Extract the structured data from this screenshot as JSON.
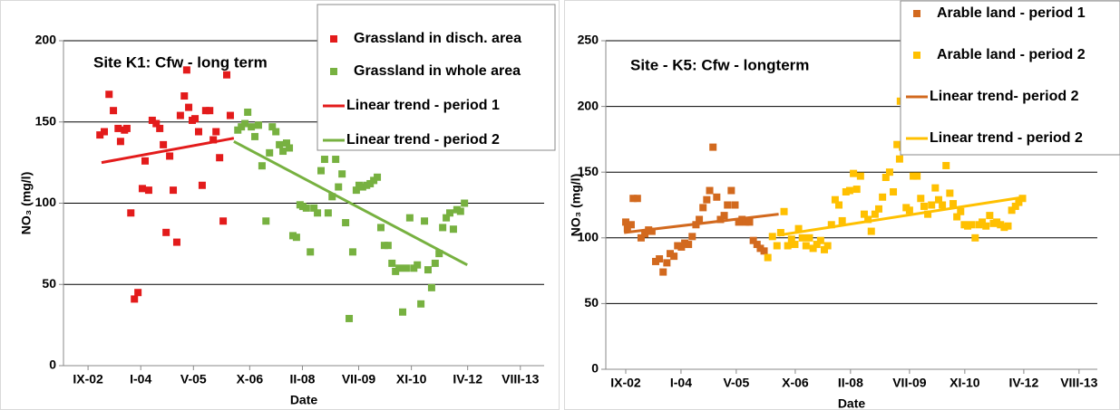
{
  "chart_data": [
    {
      "type": "scatter",
      "title": "Site K1:  Cfw - long term",
      "x_label": "Date",
      "y_label": "NO₃ (mg/l)",
      "xlim": [
        2002.05,
        2014.18
      ],
      "xticks": [
        {
          "value": 2002.67,
          "label": "IX-02"
        },
        {
          "value": 2004.0,
          "label": "I-04"
        },
        {
          "value": 2005.33,
          "label": "V-05"
        },
        {
          "value": 2006.75,
          "label": "X-06"
        },
        {
          "value": 2008.08,
          "label": "II-08"
        },
        {
          "value": 2009.5,
          "label": "VII-09"
        },
        {
          "value": 2010.83,
          "label": "XI-10"
        },
        {
          "value": 2012.25,
          "label": "IV-12"
        },
        {
          "value": 2013.58,
          "label": "VIII-13"
        }
      ],
      "ylim": [
        0,
        200
      ],
      "yticks": [
        0,
        50,
        100,
        150,
        200
      ],
      "grid": true,
      "legend": "upper right",
      "series": [
        {
          "name": "Grassland in disch. area",
          "color": "#e31b1b",
          "mode": "markers",
          "x": [
            2002.97,
            2003.08,
            2003.2,
            2003.31,
            2003.43,
            2003.49,
            2003.59,
            2003.65,
            2003.75,
            2003.84,
            2003.93,
            2004.04,
            2004.11,
            2004.2,
            2004.29,
            2004.39,
            2004.48,
            2004.57,
            2004.64,
            2004.73,
            2004.82,
            2004.91,
            2005.0,
            2005.1,
            2005.16,
            2005.21,
            2005.3,
            2005.37,
            2005.46,
            2005.55,
            2005.64,
            2005.74,
            2005.83,
            2005.9,
            2005.99,
            2006.08,
            2006.17,
            2006.26
          ],
          "values": [
            142,
            144,
            167,
            157,
            146,
            138,
            145,
            146,
            94,
            41,
            45,
            109,
            126,
            108,
            151,
            149,
            146,
            136,
            82,
            129,
            108,
            76,
            154,
            166,
            182,
            159,
            151,
            152,
            144,
            111,
            157,
            157,
            139,
            144,
            128,
            89,
            179,
            154
          ]
        },
        {
          "name": "Grassland in whole area",
          "color": "#77b140",
          "mode": "markers",
          "x": [
            2006.45,
            2006.54,
            2006.63,
            2006.7,
            2006.79,
            2006.88,
            2006.97,
            2007.06,
            2007.16,
            2007.25,
            2007.32,
            2007.41,
            2007.5,
            2007.59,
            2007.68,
            2007.75,
            2007.84,
            2007.93,
            2008.02,
            2008.09,
            2008.18,
            2008.28,
            2008.37,
            2008.46,
            2008.55,
            2008.64,
            2008.73,
            2008.83,
            2008.92,
            2008.99,
            2009.08,
            2009.17,
            2009.26,
            2009.35,
            2009.44,
            2009.51,
            2009.6,
            2009.7,
            2009.79,
            2009.88,
            2009.97,
            2010.06,
            2010.15,
            2010.24,
            2010.34,
            2010.43,
            2010.52,
            2010.61,
            2010.7,
            2010.79,
            2010.89,
            2010.98,
            2011.07,
            2011.16,
            2011.25,
            2011.34,
            2011.43,
            2011.53,
            2011.62,
            2011.71,
            2011.8,
            2011.89,
            2011.98,
            2012.07,
            2012.17
          ],
          "values": [
            145,
            147,
            149,
            156,
            147,
            141,
            148,
            123,
            89,
            131,
            147,
            144,
            136,
            132,
            137,
            134,
            80,
            79,
            99,
            98,
            97,
            70,
            97,
            94,
            120,
            127,
            94,
            104,
            127,
            110,
            118,
            88,
            29,
            70,
            108,
            111,
            110,
            111,
            112,
            114,
            116,
            85,
            74,
            74,
            63,
            58,
            60,
            33,
            60,
            91,
            60,
            62,
            38,
            89,
            59,
            48,
            63,
            69,
            85,
            91,
            94,
            84,
            96,
            95,
            100
          ]
        },
        {
          "name": "Linear trend - period 1",
          "color": "#e31b1b",
          "mode": "line",
          "x": [
            2003.01,
            2006.35
          ],
          "values": [
            125,
            140
          ]
        },
        {
          "name": "Linear trend - period 2",
          "color": "#77b140",
          "mode": "line",
          "x": [
            2006.35,
            2012.24
          ],
          "values": [
            138,
            62
          ]
        }
      ]
    },
    {
      "type": "scatter",
      "title": "Site - K5: Cfw - longterm",
      "x_label": "Date",
      "y_label": "NO₃ (mg/l)",
      "xlim": [
        2002.19,
        2014.02
      ],
      "xticks": [
        {
          "value": 2002.67,
          "label": "IX-02"
        },
        {
          "value": 2004.0,
          "label": "I-04"
        },
        {
          "value": 2005.33,
          "label": "V-05"
        },
        {
          "value": 2006.75,
          "label": "X-06"
        },
        {
          "value": 2008.08,
          "label": "II-08"
        },
        {
          "value": 2009.5,
          "label": "VII-09"
        },
        {
          "value": 2010.83,
          "label": "XI-10"
        },
        {
          "value": 2012.25,
          "label": "IV-12"
        },
        {
          "value": 2013.58,
          "label": "VIII-13"
        }
      ],
      "ylim": [
        0,
        250
      ],
      "yticks": [
        0,
        50,
        100,
        150,
        200,
        250
      ],
      "grid": true,
      "legend": "upper right",
      "series": [
        {
          "name": "Arable land - period 1",
          "color": "#d2691e",
          "mode": "markers",
          "x": [
            2002.67,
            2002.71,
            2002.8,
            2002.85,
            2002.95,
            2003.04,
            2003.13,
            2003.22,
            2003.3,
            2003.39,
            2003.48,
            2003.57,
            2003.66,
            2003.74,
            2003.83,
            2003.92,
            2004.01,
            2004.09,
            2004.18,
            2004.27,
            2004.36,
            2004.44,
            2004.53,
            2004.62,
            2004.69,
            2004.77,
            2004.86,
            2004.95,
            2005.04,
            2005.12,
            2005.21,
            2005.3,
            2005.39,
            2005.47,
            2005.56,
            2005.65,
            2005.74,
            2005.83,
            2005.91,
            2006.0
          ],
          "values": [
            112,
            107,
            110,
            130,
            130,
            100,
            103,
            106,
            105,
            82,
            84,
            74,
            81,
            88,
            86,
            94,
            93,
            96,
            95,
            101,
            110,
            114,
            123,
            129,
            136,
            169,
            131,
            114,
            117,
            125,
            136,
            125,
            112,
            114,
            112,
            112,
            98,
            95,
            92,
            90
          ]
        },
        {
          "name": "Arable land - period 2",
          "color": "#ffc000",
          "mode": "markers",
          "x": [
            2006.09,
            2006.2,
            2006.31,
            2006.4,
            2006.48,
            2006.57,
            2006.66,
            2006.74,
            2006.83,
            2006.92,
            2007.01,
            2007.09,
            2007.18,
            2007.27,
            2007.36,
            2007.45,
            2007.53,
            2007.62,
            2007.71,
            2007.8,
            2007.88,
            2007.97,
            2008.06,
            2008.15,
            2008.23,
            2008.32,
            2008.41,
            2008.5,
            2008.58,
            2008.67,
            2008.76,
            2008.85,
            2008.93,
            2009.02,
            2009.11,
            2009.2,
            2009.26,
            2009.28,
            2009.33,
            2009.4,
            2009.42,
            2009.5,
            2009.55,
            2009.59,
            2009.68,
            2009.77,
            2009.85,
            2009.94,
            2010.03,
            2010.12,
            2010.2,
            2010.29,
            2010.38,
            2010.47,
            2010.55,
            2010.64,
            2010.73,
            2010.82,
            2010.9,
            2010.99,
            2011.08,
            2011.17,
            2011.25,
            2011.34,
            2011.43,
            2011.52,
            2011.6,
            2011.69,
            2011.78,
            2011.87,
            2011.96,
            2012.05,
            2012.13,
            2012.22
          ],
          "values": [
            85,
            101,
            94,
            104,
            120,
            94,
            99,
            95,
            107,
            100,
            94,
            100,
            92,
            95,
            98,
            91,
            94,
            110,
            129,
            125,
            113,
            135,
            136,
            149,
            137,
            147,
            118,
            114,
            105,
            118,
            122,
            131,
            146,
            150,
            135,
            171,
            160,
            204,
            169,
            189,
            123,
            121,
            175,
            147,
            147,
            130,
            124,
            118,
            125,
            138,
            129,
            125,
            155,
            134,
            126,
            116,
            120,
            110,
            109,
            110,
            100,
            110,
            112,
            109,
            117,
            111,
            112,
            110,
            108,
            109,
            121,
            124,
            127,
            130
          ]
        },
        {
          "name": "Linear trend- period 2",
          "color": "#d2691e",
          "mode": "line",
          "x": [
            2002.63,
            2006.35
          ],
          "values": [
            104,
            118
          ]
        },
        {
          "name": "Linear trend - period 2",
          "color": "#ffc000",
          "mode": "line",
          "x": [
            2006.35,
            2012.26
          ],
          "values": [
            102,
            131
          ]
        }
      ]
    }
  ]
}
